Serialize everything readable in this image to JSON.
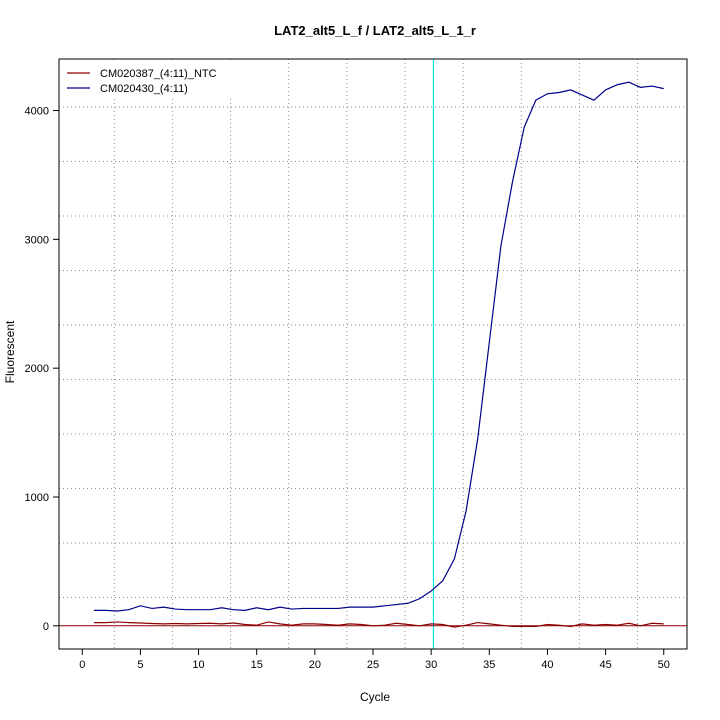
{
  "chart_data": {
    "type": "line",
    "title": "LAT2_alt5_L_f / LAT2_alt5_L_1_r",
    "xlabel": "Cycle",
    "ylabel": "Fluorescent",
    "xlim": [
      -2,
      52
    ],
    "ylim": [
      -180,
      4400
    ],
    "x_ticks": [
      0,
      5,
      10,
      15,
      20,
      25,
      30,
      35,
      40,
      45,
      50
    ],
    "y_ticks": [
      0,
      1000,
      2000,
      3000,
      4000
    ],
    "grid": "dotted",
    "grid_x_lines": [
      2.75,
      7.75,
      12.75,
      17.75,
      22.75,
      27.75,
      32.75,
      37.75,
      42.75,
      47.75
    ],
    "grid_y_lines": [
      220,
      643,
      1066,
      1489,
      1912,
      2335,
      2758,
      3181,
      3604,
      4027
    ],
    "threshold_cycle": 30.2,
    "threshold_color": "#00e5ee",
    "baseline_y": 0,
    "baseline_color": "#8b0000",
    "legend_position": "top-left",
    "x": [
      1,
      2,
      3,
      4,
      5,
      6,
      7,
      8,
      9,
      10,
      11,
      12,
      13,
      14,
      15,
      16,
      17,
      18,
      19,
      20,
      21,
      22,
      23,
      24,
      25,
      26,
      27,
      28,
      29,
      30,
      31,
      32,
      33,
      34,
      35,
      36,
      37,
      38,
      39,
      40,
      41,
      42,
      43,
      44,
      45,
      46,
      47,
      48,
      49,
      50
    ],
    "series": [
      {
        "name": "CM020387_(4:11)_NTC",
        "color": "#8b0000",
        "values": [
          25,
          25,
          30,
          25,
          22,
          18,
          15,
          18,
          15,
          18,
          20,
          15,
          22,
          10,
          5,
          30,
          15,
          5,
          15,
          15,
          10,
          5,
          15,
          10,
          0,
          5,
          20,
          10,
          0,
          15,
          10,
          -10,
          5,
          25,
          15,
          5,
          -5,
          -5,
          -5,
          10,
          5,
          -5,
          15,
          5,
          10,
          5,
          20,
          0,
          20,
          15
        ]
      },
      {
        "name": "CM020430_(4:11)",
        "color": "#00008b",
        "values": [
          120,
          120,
          115,
          125,
          155,
          135,
          145,
          130,
          125,
          125,
          125,
          140,
          125,
          120,
          140,
          125,
          145,
          130,
          135,
          135,
          135,
          135,
          145,
          145,
          145,
          155,
          165,
          175,
          210,
          270,
          350,
          520,
          890,
          1450,
          2200,
          2950,
          3450,
          3870,
          4080,
          4130,
          4140,
          4160,
          4120,
          4080,
          4160,
          4200,
          4220,
          4180,
          4190,
          4170
        ]
      }
    ]
  }
}
